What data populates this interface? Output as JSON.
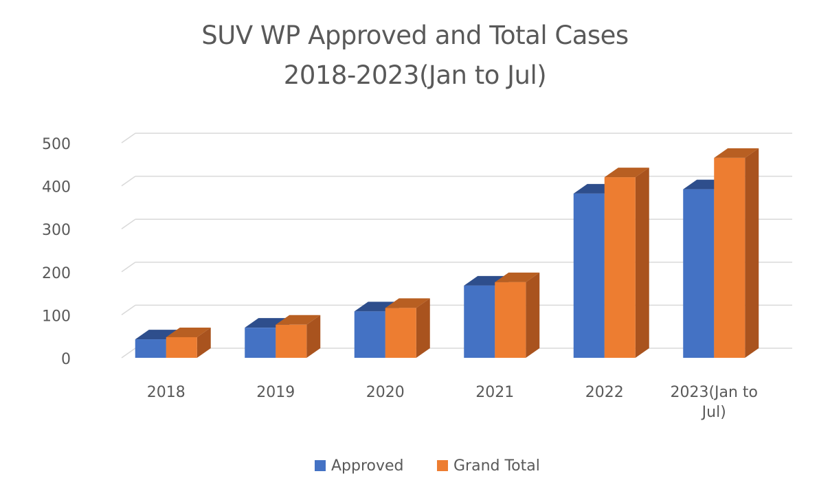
{
  "chart_data": {
    "type": "bar",
    "title_lines": [
      "SUV WP Approved and Total Cases",
      "2018-2023(Jan to Jul)"
    ],
    "categories": [
      "2018",
      "2019",
      "2020",
      "2021",
      "2022",
      "2023(Jan to Jul)"
    ],
    "category_label_lines": [
      [
        "2018"
      ],
      [
        "2019"
      ],
      [
        "2020"
      ],
      [
        "2021"
      ],
      [
        "2022"
      ],
      [
        "2023(Jan to",
        "Jul)"
      ]
    ],
    "series": [
      {
        "name": "Approved",
        "values": [
          43,
          70,
          108,
          168,
          382,
          392
        ],
        "color": "#4472C4",
        "side_color": "#2F528F",
        "top_color": "#2E4E8C"
      },
      {
        "name": "Grand Total",
        "values": [
          48,
          77,
          116,
          176,
          420,
          465
        ],
        "color": "#ED7D31",
        "side_color": "#A9531E",
        "top_color": "#B85F22"
      }
    ],
    "yticks": [
      0,
      100,
      200,
      300,
      400,
      500
    ],
    "ylim": [
      0,
      500
    ],
    "grid": true,
    "legend_position": "bottom",
    "style": "3d-clustered-column"
  }
}
